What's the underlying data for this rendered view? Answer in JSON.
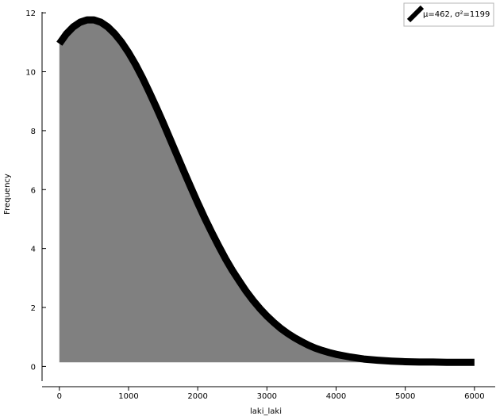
{
  "chart_data": {
    "type": "area",
    "xlabel": "laki_laki",
    "ylabel": "Frequency",
    "xlim": [
      -250,
      6300
    ],
    "ylim": [
      -0.5,
      12.3
    ],
    "xticks": [
      0,
      1000,
      2000,
      3000,
      4000,
      5000,
      6000
    ],
    "yticks": [
      0,
      2,
      4,
      6,
      8,
      10,
      12
    ],
    "grid": false,
    "legend_position": "top-right",
    "series": [
      {
        "name": "μ=462, σ²=1199",
        "fill_color": "#808080",
        "line_color": "#000000",
        "x": [
          0,
          100,
          200,
          300,
          400,
          500,
          600,
          700,
          800,
          900,
          1000,
          1100,
          1200,
          1300,
          1400,
          1500,
          1600,
          1700,
          1800,
          1900,
          2000,
          2100,
          2200,
          2300,
          2400,
          2500,
          2600,
          2700,
          2800,
          2900,
          3000,
          3100,
          3200,
          3300,
          3400,
          3500,
          3600,
          3700,
          3800,
          3900,
          4000,
          4200,
          4400,
          4600,
          4800,
          5000,
          5200,
          5400,
          5600,
          5800,
          6000
        ],
        "y": [
          10.95,
          11.28,
          11.52,
          11.68,
          11.76,
          11.76,
          11.68,
          11.52,
          11.29,
          11.0,
          10.65,
          10.25,
          9.8,
          9.31,
          8.8,
          8.27,
          7.72,
          7.17,
          6.62,
          6.08,
          5.55,
          5.04,
          4.56,
          4.1,
          3.66,
          3.26,
          2.9,
          2.55,
          2.24,
          1.96,
          1.71,
          1.49,
          1.29,
          1.12,
          0.97,
          0.84,
          0.72,
          0.62,
          0.54,
          0.47,
          0.41,
          0.32,
          0.25,
          0.21,
          0.18,
          0.16,
          0.15,
          0.15,
          0.14,
          0.14,
          0.14
        ]
      }
    ]
  }
}
